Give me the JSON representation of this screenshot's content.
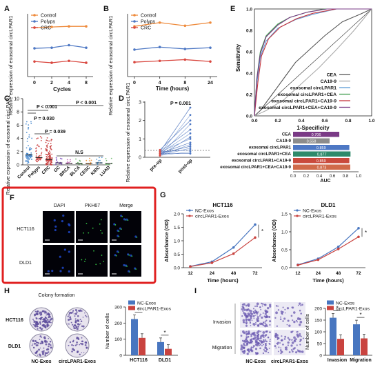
{
  "colors": {
    "control": "#ee8b3d",
    "polyps": "#4e78c4",
    "crc": "#d9473f",
    "nc_bar": "#4876c0",
    "circ_bar": "#c9433f",
    "highlight_box": "#e02020",
    "auc_bar": "#7a3a86"
  },
  "panelA": {
    "letter": "A",
    "ylabel": "Relative expression of exosomal circLPAR1",
    "xlabel": "Cycles",
    "legend": [
      "Control",
      "Polyps",
      "CRC"
    ],
    "chart_data": {
      "type": "line",
      "x": [
        0,
        2,
        4,
        8
      ],
      "ylim": [
        0,
        1
      ],
      "series": [
        {
          "name": "Control",
          "values": [
            0.78,
            0.79,
            0.8,
            0.8
          ]
        },
        {
          "name": "Polyps",
          "values": [
            0.45,
            0.46,
            0.5,
            0.46
          ]
        },
        {
          "name": "CRC",
          "values": [
            0.24,
            0.22,
            0.25,
            0.22
          ]
        }
      ]
    }
  },
  "panelB": {
    "letter": "B",
    "ylabel": "Relative expression of exosomal circLPAR1",
    "xlabel": "Time (hours)",
    "legend": [
      "Control",
      "Polyps",
      "CRC"
    ],
    "chart_data": {
      "type": "line",
      "x": [
        0,
        4,
        8,
        24
      ],
      "ylim": [
        0,
        1
      ],
      "series": [
        {
          "name": "Control",
          "values": [
            0.8,
            0.86,
            0.81,
            0.86
          ]
        },
        {
          "name": "Polyps",
          "values": [
            0.43,
            0.47,
            0.44,
            0.46
          ]
        },
        {
          "name": "CRC",
          "values": [
            0.23,
            0.25,
            0.27,
            0.24
          ]
        }
      ]
    }
  },
  "panelC": {
    "letter": "C",
    "ylabel": "Relative expression of exosomal circLPAR1",
    "yticks": [
      "0",
      "2",
      "4",
      "6",
      "8",
      "10"
    ],
    "categories": [
      "Control",
      "Polyps",
      "CRC",
      "GC",
      "BRCA",
      "BLCA",
      "CESC",
      "KIRC",
      "LUAD"
    ],
    "significance": [
      "P = 0.030",
      "P < 0.001",
      "P = 0.039",
      "P < 0.001",
      "N.S"
    ],
    "chart_data": {
      "type": "scatter",
      "categories": [
        "Control",
        "Polyps",
        "CRC",
        "GC",
        "BRCA",
        "BLCA",
        "CESC",
        "KIRC",
        "LUAD"
      ],
      "means": [
        1.5,
        1.1,
        0.8,
        0.3,
        0.25,
        0.2,
        0.2,
        0.3,
        0.2
      ],
      "ylim": [
        0,
        10
      ]
    }
  },
  "panelD": {
    "letter": "D",
    "ylabel": "Relative expression of exosomal circLPAR1",
    "significance": "P = 0.001",
    "yticks": [
      "0",
      "1",
      "2",
      "3"
    ],
    "categories": [
      "pre-op",
      "post-op"
    ],
    "chart_data": {
      "type": "line",
      "categories": [
        "pre-op",
        "post-op"
      ],
      "pairs": [
        [
          0.3,
          2.7
        ],
        [
          0.2,
          2.3
        ],
        [
          0.4,
          2.0
        ],
        [
          0.1,
          1.8
        ],
        [
          0.3,
          1.5
        ],
        [
          0.2,
          1.3
        ],
        [
          0.1,
          1.1
        ],
        [
          0.3,
          1.0
        ],
        [
          0.2,
          0.8
        ],
        [
          0.1,
          0.7
        ],
        [
          0.2,
          0.6
        ],
        [
          0.1,
          0.5
        ],
        [
          0.3,
          0.4
        ],
        [
          0.1,
          0.3
        ],
        [
          0.2,
          0.2
        ]
      ],
      "ylim": [
        0,
        3
      ]
    }
  },
  "panelE": {
    "letter": "E",
    "ylabel": "Sensitivity",
    "xlabel": "1-Specificity",
    "ticks": [
      "0.0",
      "0.2",
      "0.4",
      "0.6",
      "0.8",
      "1.0"
    ],
    "legend": [
      "CEA",
      "CA19-9",
      "exosomal circLPAR1",
      "exosomal circLPAR1+CEA",
      "exosomal circLPAR1+CA19-9",
      "exosomal circLPAR1+CEA+CA19-9"
    ],
    "legend_colors": [
      "#555555",
      "#aaaaaa",
      "#5a9bd5",
      "#3a9a4a",
      "#c7343d",
      "#7a3a86"
    ],
    "auc_xlabel": "AUC",
    "auc_ticks": [
      "0.0",
      "0.2",
      "0.4",
      "0.6",
      "0.8",
      "1.0"
    ],
    "auc_chart": {
      "type": "bar",
      "categories": [
        "CEA",
        "CA19-9",
        "exosomal circLPAR1",
        "exosomal circLPAR1+CEA",
        "exosomal circLPAR1+CA19-9",
        "exosomal circLPAR1+CEA+CA19-9"
      ],
      "values": [
        0.706,
        0.558,
        0.859,
        0.877,
        0.859,
        0.873
      ],
      "labels": [
        "0.706",
        "0.558",
        "0.859",
        "0.877",
        "0.859",
        "0.873"
      ],
      "colors": [
        "#7a3a86",
        "#8c8c8c",
        "#4e78c4",
        "#2e8a6a",
        "#c94a3c",
        "#d06a4a"
      ]
    }
  },
  "panelF": {
    "letter": "F",
    "columns": [
      "DAPI",
      "PKH67",
      "Merge"
    ],
    "rows": [
      "HCT116",
      "DLD1"
    ]
  },
  "panelG": {
    "letter": "G",
    "legend": [
      "NC-Exos",
      "circLPAR1-Exos"
    ],
    "ylabel": "Absorbance (OD)",
    "xlabel": "Time (hours)",
    "xticks": [
      "12",
      "24",
      "48",
      "72"
    ],
    "charts": [
      {
        "title": "HCT116",
        "yticks": [
          "0.0",
          "0.5",
          "1.0",
          "1.5",
          "2.0"
        ],
        "ylim": [
          0,
          2
        ],
        "chart_data": {
          "type": "line",
          "x": [
            12,
            24,
            48,
            72
          ],
          "series": [
            {
              "name": "NC-Exos",
              "values": [
                0.05,
                0.22,
                0.75,
                1.6
              ]
            },
            {
              "name": "circLPAR1-Exos",
              "values": [
                0.04,
                0.18,
                0.52,
                1.12
              ]
            }
          ]
        },
        "sig": "*"
      },
      {
        "title": "DLD1",
        "yticks": [
          "0.0",
          "0.5",
          "1.0",
          "1.5"
        ],
        "ylim": [
          0,
          1.5
        ],
        "chart_data": {
          "type": "line",
          "x": [
            12,
            24,
            48,
            72
          ],
          "series": [
            {
              "name": "NC-Exos",
              "values": [
                0.08,
                0.25,
                0.58,
                1.1
              ]
            },
            {
              "name": "circLPAR1-Exos",
              "values": [
                0.07,
                0.22,
                0.52,
                0.86
              ]
            }
          ]
        },
        "sig": "*"
      }
    ]
  },
  "panelH": {
    "letter": "H",
    "title": "Colony formation",
    "rows": [
      "HCT116",
      "DLD1"
    ],
    "cols": [
      "NC-Exos",
      "circLPAR1-Exos"
    ],
    "legend": [
      "NC-Exos",
      "circLPAR1-Exos"
    ],
    "ylabel": "Number of cells",
    "yticks": [
      "0",
      "100",
      "200",
      "300"
    ],
    "chart_data": {
      "type": "bar",
      "categories": [
        "HCT116",
        "DLD1"
      ],
      "series": [
        {
          "name": "NC-Exos",
          "values": [
            225,
            82
          ]
        },
        {
          "name": "circLPAR1-Exos",
          "values": [
            108,
            40
          ]
        }
      ],
      "ylim": [
        0,
        300
      ]
    },
    "sig": [
      "*",
      "*"
    ]
  },
  "panelI": {
    "letter": "I",
    "rows": [
      "Invasion",
      "Migration"
    ],
    "cols": [
      "NC-Exos",
      "circLPAR1-Exos"
    ],
    "legend": [
      "NC-Exos",
      "circLPAR1-Exos"
    ],
    "ylabel": "Number of cells",
    "yticks": [
      "0",
      "50",
      "100",
      "150",
      "200"
    ],
    "chart_data": {
      "type": "bar",
      "categories": [
        "Invasion",
        "Migration"
      ],
      "series": [
        {
          "name": "NC-Exos",
          "values": [
            160,
            132
          ]
        },
        {
          "name": "circLPAR1-Exos",
          "values": [
            70,
            72
          ]
        }
      ],
      "ylim": [
        0,
        200
      ]
    },
    "sig": [
      "*",
      "*"
    ]
  }
}
